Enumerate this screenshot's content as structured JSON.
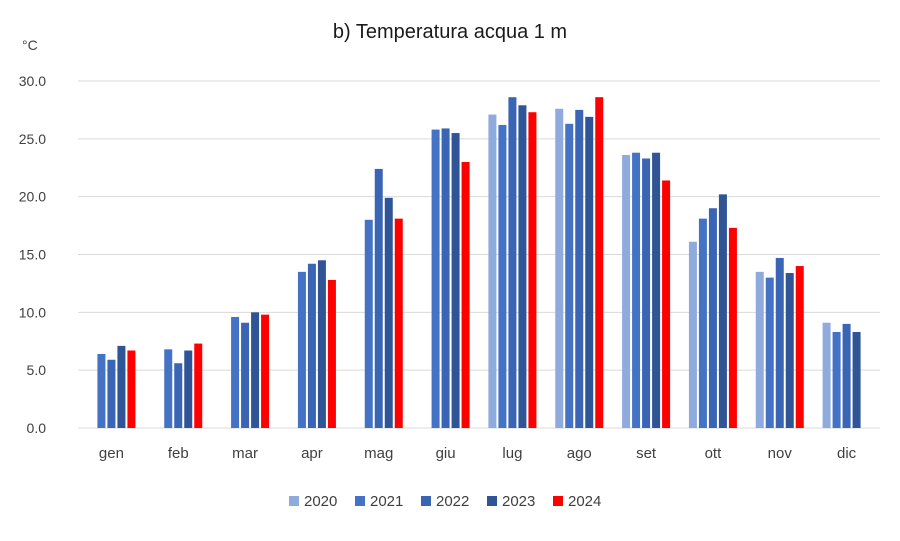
{
  "chart_data": {
    "type": "bar",
    "title": "b) Temperatura acqua 1 m",
    "ylabel": "°C",
    "xlabel": "",
    "ylim": [
      0,
      30
    ],
    "yticks": [
      "0.0",
      "5.0",
      "10.0",
      "15.0",
      "20.0",
      "25.0",
      "30.0"
    ],
    "grid": true,
    "legend_position": "bottom",
    "categories": [
      "gen",
      "feb",
      "mar",
      "apr",
      "mag",
      "giu",
      "lug",
      "ago",
      "set",
      "ott",
      "nov",
      "dic"
    ],
    "series": [
      {
        "name": "2020",
        "color": "#8FAADC",
        "values": [
          null,
          null,
          null,
          null,
          null,
          null,
          27.1,
          27.6,
          23.6,
          16.1,
          13.5,
          9.1
        ]
      },
      {
        "name": "2021",
        "color": "#4472C4",
        "values": [
          6.4,
          6.8,
          9.6,
          13.5,
          18.0,
          25.8,
          26.2,
          26.3,
          23.8,
          18.1,
          13.0,
          8.3
        ]
      },
      {
        "name": "2022",
        "color": "#3A64B4",
        "values": [
          5.9,
          5.6,
          9.1,
          14.2,
          22.4,
          25.9,
          28.6,
          27.5,
          23.3,
          19.0,
          14.7,
          9.0
        ]
      },
      {
        "name": "2023",
        "color": "#2F5597",
        "values": [
          7.1,
          6.7,
          10.0,
          14.5,
          19.9,
          25.5,
          27.9,
          26.9,
          23.8,
          20.2,
          13.4,
          8.3
        ]
      },
      {
        "name": "2024",
        "color": "#FF0000",
        "values": [
          6.7,
          7.3,
          9.8,
          12.8,
          18.1,
          23.0,
          27.3,
          28.6,
          21.4,
          17.3,
          14.0,
          null
        ]
      }
    ]
  }
}
